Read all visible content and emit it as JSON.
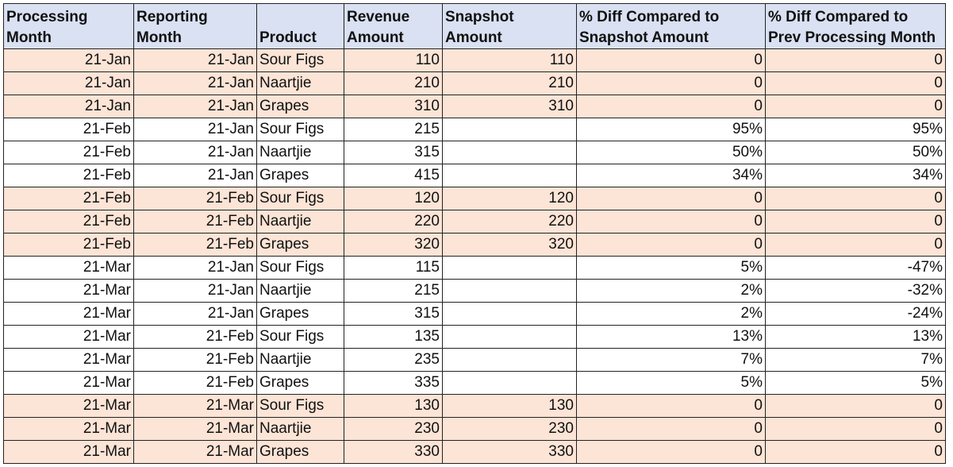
{
  "headers": [
    [
      "Processing",
      "Month"
    ],
    [
      "Reporting",
      "Month"
    ],
    [
      "",
      "Product"
    ],
    [
      "Revenue",
      "Amount"
    ],
    [
      "Snapshot",
      "Amount"
    ],
    [
      "% Diff Compared to",
      "Snapshot Amount"
    ],
    [
      "% Diff Compared to",
      "Prev Processing Month"
    ]
  ],
  "rows": [
    {
      "style": "pink",
      "cells": [
        "21-Jan",
        "21-Jan",
        "Sour Figs",
        "110",
        "110",
        "0",
        "0"
      ]
    },
    {
      "style": "pink",
      "cells": [
        "21-Jan",
        "21-Jan",
        "Naartjie",
        "210",
        "210",
        "0",
        "0"
      ]
    },
    {
      "style": "pink",
      "cells": [
        "21-Jan",
        "21-Jan",
        "Grapes",
        "310",
        "310",
        "0",
        "0"
      ]
    },
    {
      "style": "white",
      "cells": [
        "21-Feb",
        "21-Jan",
        "Sour Figs",
        "215",
        "",
        "95%",
        "95%"
      ]
    },
    {
      "style": "white",
      "cells": [
        "21-Feb",
        "21-Jan",
        "Naartjie",
        "315",
        "",
        "50%",
        "50%"
      ]
    },
    {
      "style": "white",
      "cells": [
        "21-Feb",
        "21-Jan",
        "Grapes",
        "415",
        "",
        "34%",
        "34%"
      ]
    },
    {
      "style": "pink",
      "cells": [
        "21-Feb",
        "21-Feb",
        "Sour Figs",
        "120",
        "120",
        "0",
        "0"
      ]
    },
    {
      "style": "pink",
      "cells": [
        "21-Feb",
        "21-Feb",
        "Naartjie",
        "220",
        "220",
        "0",
        "0"
      ]
    },
    {
      "style": "pink",
      "cells": [
        "21-Feb",
        "21-Feb",
        "Grapes",
        "320",
        "320",
        "0",
        "0"
      ]
    },
    {
      "style": "white",
      "cells": [
        "21-Mar",
        "21-Jan",
        "Sour Figs",
        "115",
        "",
        "5%",
        "-47%"
      ]
    },
    {
      "style": "white",
      "cells": [
        "21-Mar",
        "21-Jan",
        "Naartjie",
        "215",
        "",
        "2%",
        "-32%"
      ]
    },
    {
      "style": "white",
      "cells": [
        "21-Mar",
        "21-Jan",
        "Grapes",
        "315",
        "",
        "2%",
        "-24%"
      ]
    },
    {
      "style": "white",
      "cells": [
        "21-Mar",
        "21-Feb",
        "Sour Figs",
        "135",
        "",
        "13%",
        "13%"
      ]
    },
    {
      "style": "white",
      "cells": [
        "21-Mar",
        "21-Feb",
        "Naartjie",
        "235",
        "",
        "7%",
        "7%"
      ]
    },
    {
      "style": "white",
      "cells": [
        "21-Mar",
        "21-Feb",
        "Grapes",
        "335",
        "",
        "5%",
        "5%"
      ]
    },
    {
      "style": "pink",
      "cells": [
        "21-Mar",
        "21-Mar",
        "Sour Figs",
        "130",
        "130",
        "0",
        "0"
      ]
    },
    {
      "style": "pink",
      "cells": [
        "21-Mar",
        "21-Mar",
        "Naartjie",
        "230",
        "230",
        "0",
        "0"
      ]
    },
    {
      "style": "pink",
      "cells": [
        "21-Mar",
        "21-Mar",
        "Grapes",
        "330",
        "330",
        "0",
        "0"
      ]
    }
  ],
  "colors": {
    "header_bg": "#d9e1f2",
    "highlight_row_bg": "#fce4d6",
    "plain_row_bg": "#ffffff"
  }
}
